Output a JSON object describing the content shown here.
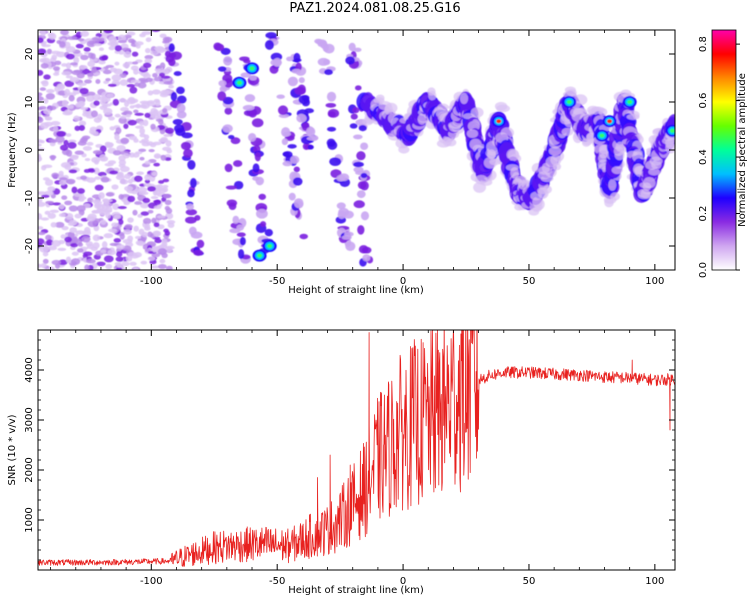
{
  "figure": {
    "title": "PAZ1.2024.081.08.25.G16"
  },
  "chart_data": [
    {
      "type": "heatmap",
      "xlabel": "Height of straight line (km)",
      "ylabel": "Frequency (Hz)",
      "xlim": [
        -145,
        108
      ],
      "ylim": [
        -25,
        25
      ],
      "x_ticks": [
        -100,
        -50,
        0,
        50,
        100
      ],
      "y_ticks": [
        -20,
        -10,
        0,
        10,
        20
      ],
      "colorbar": {
        "label": "Normalized spectral amplitude",
        "range": [
          0,
          0.85
        ],
        "ticks": [
          0.0,
          0.2,
          0.4,
          0.6,
          0.8
        ],
        "colors": [
          "#ffffff",
          "#cfa6f0",
          "#8a2be2",
          "#1e00ff",
          "#00bfff",
          "#00ff99",
          "#66ff00",
          "#ffff00",
          "#ff8800",
          "#ff0000",
          "#ff00aa"
        ]
      },
      "features": [
        {
          "name": "scatter_noise",
          "x_range": [
            -145,
            -92
          ],
          "freq_range": [
            -25,
            25
          ],
          "amplitude": 0.05
        },
        {
          "name": "oscillation",
          "x": [
            -15,
            2,
            10,
            18,
            25,
            32,
            38,
            46,
            52,
            60,
            66,
            72,
            78,
            82,
            88,
            95,
            102,
            108
          ],
          "freq": [
            10,
            3,
            10,
            4,
            10,
            -5,
            6,
            -9,
            -10,
            0,
            10,
            4,
            6,
            -8,
            10,
            -9,
            0,
            5
          ],
          "amplitude": 0.3
        },
        {
          "name": "hotspots",
          "x": [
            38,
            66,
            79,
            82,
            90,
            107,
            -53,
            -57,
            -60,
            -65
          ],
          "freq": [
            6,
            10,
            3,
            6,
            10,
            4,
            -20,
            -22,
            17,
            14
          ],
          "amplitude": 0.8
        }
      ]
    },
    {
      "type": "line",
      "xlabel": "Height of straight line (km)",
      "ylabel": "SNR (10 * v/v)",
      "xlim": [
        -145,
        108
      ],
      "ylim": [
        0,
        4800
      ],
      "x_ticks": [
        -100,
        -50,
        0,
        50,
        100
      ],
      "y_ticks": [
        1000,
        2000,
        3000,
        4000
      ],
      "color": "#e8211f",
      "x": [
        -145,
        -130,
        -110,
        -100,
        -92,
        -85,
        -75,
        -65,
        -55,
        -45,
        -40,
        -35,
        -30,
        -25,
        -20,
        -15,
        -10,
        -5,
        0,
        5,
        10,
        15,
        20,
        25,
        30,
        35,
        40,
        50,
        60,
        70,
        80,
        90,
        100,
        108
      ],
      "values": [
        150,
        150,
        160,
        170,
        180,
        300,
        450,
        500,
        520,
        480,
        600,
        720,
        800,
        1000,
        1300,
        1650,
        2200,
        2500,
        2800,
        2950,
        3000,
        3200,
        3450,
        3700,
        3800,
        3900,
        3950,
        3950,
        3920,
        3900,
        3860,
        3840,
        3800,
        3820
      ],
      "spikes": [
        {
          "x": -13.5,
          "value": 4750
        },
        {
          "x": -34,
          "value": 1850
        },
        {
          "x": -29,
          "value": 2300
        },
        {
          "x": -21,
          "value": 2100
        },
        {
          "x": 9,
          "value": 3800
        },
        {
          "x": 91,
          "value": 4200
        },
        {
          "x": 106,
          "value": 2800
        }
      ]
    }
  ]
}
